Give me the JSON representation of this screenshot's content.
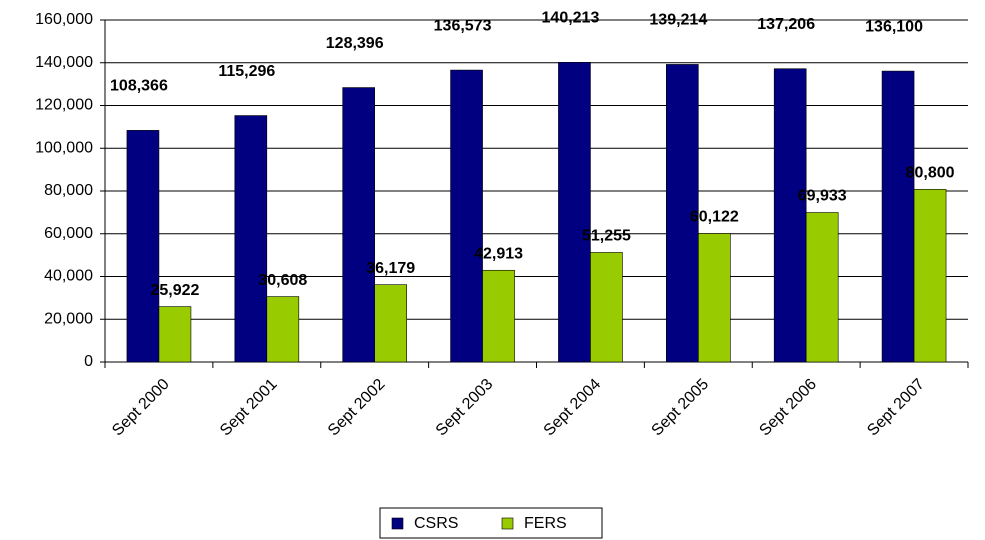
{
  "chart_data": {
    "type": "bar",
    "categories": [
      "Sept 2000",
      "Sept 2001",
      "Sept 2002",
      "Sept 2003",
      "Sept 2004",
      "Sept 2005",
      "Sept 2006",
      "Sept 2007"
    ],
    "series": [
      {
        "name": "CSRS",
        "color": "#000080",
        "values": [
          108366,
          115296,
          128396,
          136573,
          140213,
          139214,
          137206,
          136100
        ],
        "value_labels": [
          "108,366",
          "115,296",
          "128,396",
          "136,573",
          "140,213",
          "139,214",
          "137,206",
          "136,100"
        ]
      },
      {
        "name": "FERS",
        "color": "#99cc00",
        "values": [
          25922,
          30608,
          36179,
          42913,
          51255,
          60122,
          69933,
          80800
        ],
        "value_labels": [
          "25,922",
          "30,608",
          "36,179",
          "42,913",
          "51,255",
          "60,122",
          "69,933",
          "80,800"
        ]
      }
    ],
    "ylim": [
      0,
      160000
    ],
    "yticks": [
      0,
      {
        "value": 20000,
        "label": "20,000"
      },
      {
        "value": 40000,
        "label": "40,000"
      },
      {
        "value": 60000,
        "label": "60,000"
      },
      {
        "value": 80000,
        "label": "80,000"
      },
      {
        "value": 100000,
        "label": "100,000"
      },
      {
        "value": 120000,
        "label": "120,000"
      },
      {
        "value": 140000,
        "label": "140,000"
      },
      {
        "value": 160000,
        "label": "160,000"
      }
    ],
    "grid": true,
    "legend": "bottom"
  }
}
